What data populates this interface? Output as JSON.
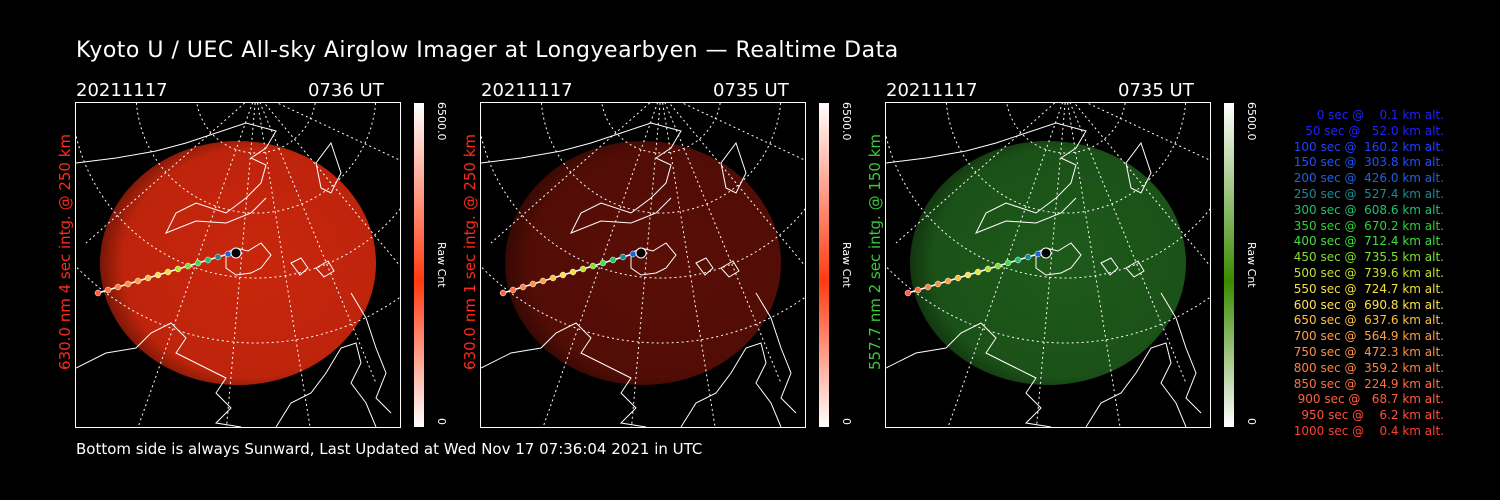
{
  "title": "Kyoto U / UEC All-sky Airglow Imager at Longyearbyen — Realtime Data",
  "panels": [
    {
      "date": "20211117",
      "time": "0736 UT",
      "side_label": "630.0 nm 4 sec intg. @ 250 km",
      "side_color": "#ff2a1a",
      "cbar_max": "6500.0",
      "cbar_unit": "Raw Cnt",
      "cbar_min": "0",
      "cbar_color": "#ff3a10",
      "glow_color": "#c8260c",
      "glow_intensity": 0.95
    },
    {
      "date": "20211117",
      "time": "0735 UT",
      "side_label": "630.0 nm 1 sec intg. @ 250 km",
      "side_color": "#ff2a1a",
      "cbar_max": "6500.0",
      "cbar_unit": "Raw Cnt",
      "cbar_min": "0",
      "cbar_color": "#ff3a10",
      "glow_color": "#5a0e06",
      "glow_intensity": 0.9
    },
    {
      "date": "20211117",
      "time": "0735 UT",
      "side_label": "557.7 nm 2 sec intg. @ 150 km",
      "side_color": "#3cc83c",
      "cbar_max": "6500.0",
      "cbar_unit": "Raw Cnt",
      "cbar_min": "0",
      "cbar_color": "#3a8a00",
      "glow_color": "#1e5a1a",
      "glow_intensity": 0.9
    }
  ],
  "legend": [
    {
      "text": "0 sec @    0.1 km alt.",
      "color": "#2020ff"
    },
    {
      "text": "50 sec @   52.0 km alt.",
      "color": "#2020ff"
    },
    {
      "text": "100 sec @  160.2 km alt.",
      "color": "#2040ff"
    },
    {
      "text": "150 sec @  303.8 km alt.",
      "color": "#2050ff"
    },
    {
      "text": "200 sec @  426.0 km alt.",
      "color": "#2060e0"
    },
    {
      "text": "250 sec @  527.4 km alt.",
      "color": "#1a8a9a"
    },
    {
      "text": "300 sec @  608.6 km alt.",
      "color": "#20c070"
    },
    {
      "text": "350 sec @  670.2 km alt.",
      "color": "#30d030"
    },
    {
      "text": "400 sec @  712.4 km alt.",
      "color": "#40e040"
    },
    {
      "text": "450 sec @  735.5 km alt.",
      "color": "#80e030"
    },
    {
      "text": "500 sec @  739.6 km alt.",
      "color": "#c0e030"
    },
    {
      "text": "550 sec @  724.7 km alt.",
      "color": "#f0e040"
    },
    {
      "text": "600 sec @  690.8 km alt.",
      "color": "#ffe050"
    },
    {
      "text": "650 sec @  637.6 km alt.",
      "color": "#ffc040"
    },
    {
      "text": "700 sec @  564.9 km alt.",
      "color": "#ffa040"
    },
    {
      "text": "750 sec @  472.3 km alt.",
      "color": "#ff9040"
    },
    {
      "text": "800 sec @  359.2 km alt.",
      "color": "#ff8040"
    },
    {
      "text": "850 sec @  224.9 km alt.",
      "color": "#ff7040"
    },
    {
      "text": "900 sec @   68.7 km alt.",
      "color": "#ff6040"
    },
    {
      "text": "950 sec @    6.2 km alt.",
      "color": "#ff5040"
    },
    {
      "text": "1000 sec @    0.4 km alt.",
      "color": "#ff4030"
    }
  ],
  "footer": "Bottom side is always Sunward, Last Updated at Wed Nov 17 07:36:04 2021 in UTC"
}
